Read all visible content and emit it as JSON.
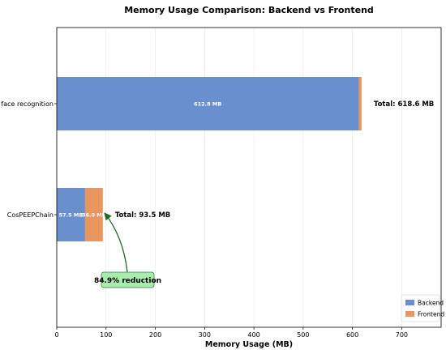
{
  "chart_data": {
    "type": "bar",
    "orientation": "horizontal",
    "stacked": true,
    "title": "Memory Usage Comparison: Backend vs Frontend",
    "xlabel": "Memory Usage (MB)",
    "ylabel": "",
    "xlim": [
      0,
      780
    ],
    "xticks": [
      0,
      100,
      200,
      300,
      400,
      500,
      600,
      700
    ],
    "grid": "vertical",
    "categories": [
      "ICP face recognition",
      "CosPEEPChain"
    ],
    "series": [
      {
        "name": "Backend",
        "color": "#6a8fcf",
        "values": [
          612.8,
          57.5
        ],
        "labels": [
          "612.8 MB",
          "57.5 MB"
        ]
      },
      {
        "name": "Frontend",
        "color": "#e8955e",
        "values": [
          5.8,
          36.0
        ],
        "labels": [
          "",
          "36.0 MB"
        ]
      }
    ],
    "totals": [
      "Total: 618.6 MB",
      "Total: 93.5 MB"
    ],
    "annotation": {
      "text": "84.9% reduction",
      "box_color": "#a8ecae",
      "border_color": "#2e7d32",
      "arrow_color": "#1e6b1e"
    },
    "legend_position": "bottom-right"
  }
}
